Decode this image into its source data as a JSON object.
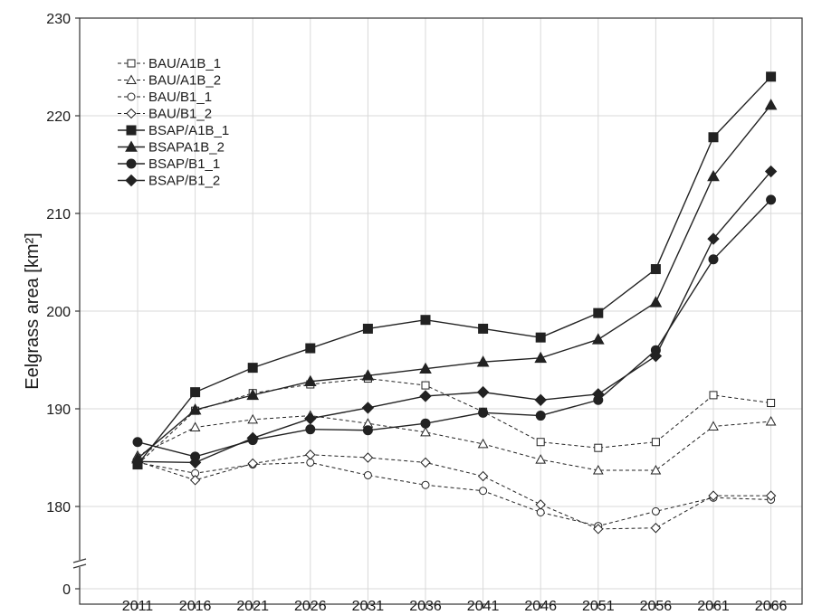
{
  "chart_data": {
    "type": "line",
    "title": "",
    "xlabel": "",
    "ylabel": "Eelgrass area [km²]",
    "x": [
      "2011",
      "2016",
      "2021",
      "2026",
      "2031",
      "2036",
      "2041",
      "2046",
      "2051",
      "2056",
      "2061",
      "2066"
    ],
    "y_ticks": [
      "0",
      "180",
      "190",
      "200",
      "210",
      "220",
      "230"
    ],
    "y_axis_break": true,
    "ylim": [
      175,
      230
    ],
    "grid": true,
    "legend_position": "top-left",
    "series": [
      {
        "name": "BAU/A1B_1",
        "marker": "open-square",
        "dashed": true,
        "values": [
          184.3,
          189.8,
          191.6,
          192.5,
          193.1,
          192.4,
          189.7,
          186.6,
          186.0,
          186.6,
          191.4,
          190.6
        ]
      },
      {
        "name": "BAU/A1B_2",
        "marker": "open-triangle",
        "dashed": true,
        "values": [
          185.2,
          188.1,
          188.9,
          189.3,
          188.5,
          187.6,
          186.4,
          184.8,
          183.7,
          183.7,
          188.2,
          188.7
        ]
      },
      {
        "name": "BAU/B1_1",
        "marker": "open-circle",
        "dashed": true,
        "values": [
          184.5,
          183.4,
          184.3,
          184.5,
          183.2,
          182.2,
          181.6,
          179.4,
          178.0,
          179.5,
          180.9,
          180.7
        ]
      },
      {
        "name": "BAU/B1_2",
        "marker": "open-diamond",
        "dashed": true,
        "values": [
          184.6,
          182.7,
          184.4,
          185.3,
          185.0,
          184.5,
          183.1,
          180.2,
          177.7,
          177.8,
          181.1,
          181.1
        ]
      },
      {
        "name": "BSAP/A1B_1",
        "marker": "filled-square",
        "dashed": false,
        "values": [
          184.3,
          191.7,
          194.2,
          196.2,
          198.2,
          199.1,
          198.2,
          197.3,
          199.8,
          204.3,
          217.8,
          224.0
        ]
      },
      {
        "name": "BSAPA1B_2",
        "marker": "filled-triangle",
        "dashed": false,
        "values": [
          184.9,
          189.9,
          191.4,
          192.8,
          193.4,
          194.1,
          194.8,
          195.2,
          197.1,
          200.9,
          213.8,
          221.1
        ]
      },
      {
        "name": "BSAP/B1_1",
        "marker": "filled-circle",
        "dashed": false,
        "values": [
          186.6,
          185.1,
          186.8,
          187.9,
          187.8,
          188.5,
          189.6,
          189.3,
          190.9,
          196.0,
          205.3,
          211.4
        ]
      },
      {
        "name": "BSAP/B1_2",
        "marker": "filled-diamond",
        "dashed": false,
        "values": [
          184.6,
          184.5,
          187.0,
          189.0,
          190.1,
          191.3,
          191.7,
          190.9,
          191.5,
          195.4,
          207.4,
          214.3
        ]
      }
    ],
    "colors": {
      "line": "#222222",
      "grid": "#d9d9d9",
      "frame": "#333333"
    }
  }
}
